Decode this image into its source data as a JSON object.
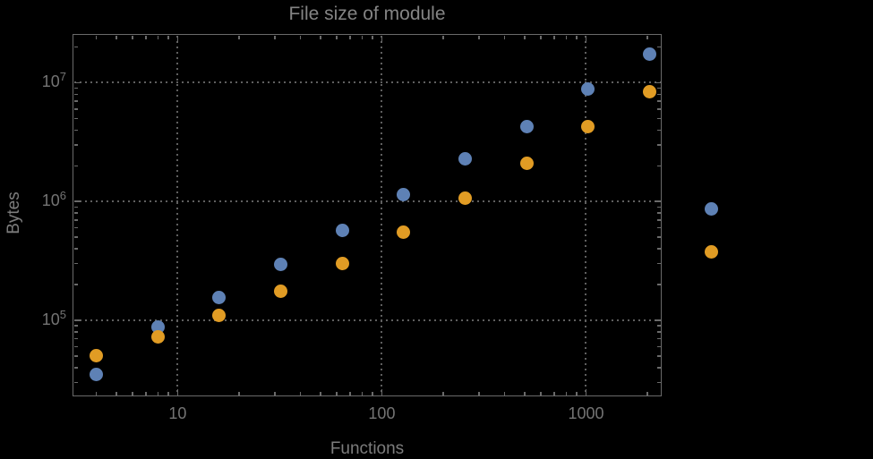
{
  "title": "File size of module",
  "colors": {
    "background": "#000000",
    "frame": "#6a6a6a",
    "grid": "#5f5f5f",
    "tick_text": "#747474",
    "axis_label_text": "#7c7c7c",
    "title_text": "#848484",
    "series1": "#5E81B5",
    "series2": "#E19C24"
  },
  "chart_data": {
    "type": "scatter",
    "title": "File size of module",
    "xlabel": "Functions",
    "ylabel": "Bytes",
    "x_scale": "log",
    "y_scale": "log",
    "grid": "dotted, at major ticks only",
    "legend": "none",
    "xlim": [
      3.07,
      2360
    ],
    "ylim": [
      22700,
      25500000
    ],
    "x": [
      4,
      8,
      16,
      32,
      64,
      128,
      256,
      512,
      1024,
      2048,
      4096
    ],
    "series": [
      {
        "name": "series-1-blue",
        "color": "#5E81B5",
        "values": [
          35000,
          88000,
          155000,
          295000,
          570000,
          1150000,
          2300000,
          4300000,
          8800000,
          17500000,
          870000
        ]
      },
      {
        "name": "series-2-orange",
        "color": "#E19C24",
        "values": [
          50000,
          73000,
          110000,
          177000,
          300000,
          555000,
          1070000,
          2100000,
          4250000,
          8400000,
          380000
        ]
      }
    ],
    "x_ticks": [
      {
        "value": 10,
        "label": "10"
      },
      {
        "value": 100,
        "label": "100"
      },
      {
        "value": 1000,
        "label": "1000"
      }
    ],
    "y_ticks": [
      {
        "value": 100000,
        "base": "10",
        "exp": "5"
      },
      {
        "value": 1000000,
        "base": "10",
        "exp": "6"
      },
      {
        "value": 10000000,
        "base": "10",
        "exp": "7"
      }
    ]
  }
}
